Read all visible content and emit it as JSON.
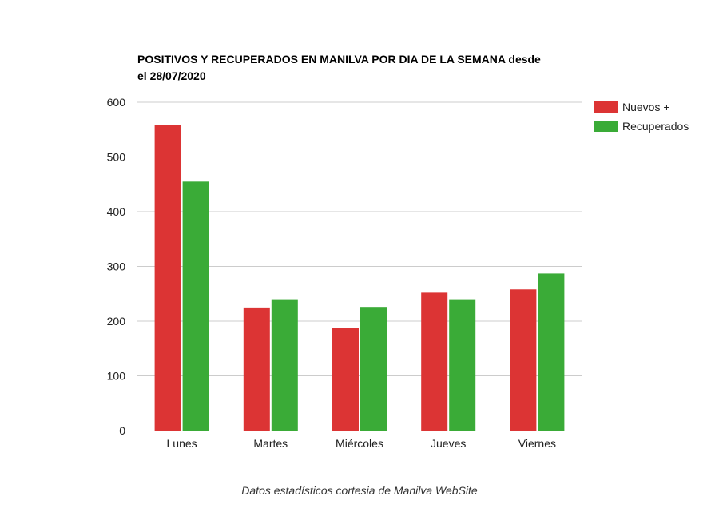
{
  "chart_data": {
    "type": "bar",
    "title_lines": [
      "POSITIVOS Y RECUPERADOS EN MANILVA POR DIA DE LA SEMANA desde",
      "el 28/07/2020"
    ],
    "categories": [
      "Lunes",
      "Martes",
      "Miércoles",
      "Jueves",
      "Viernes"
    ],
    "series": [
      {
        "name": "Nuevos +",
        "color": "#dc3434",
        "values": [
          558,
          225,
          188,
          252,
          258
        ]
      },
      {
        "name": "Recuperados",
        "color": "#3aab37",
        "values": [
          455,
          240,
          226,
          240,
          287
        ]
      }
    ],
    "y_ticks": [
      "0",
      "100",
      "200",
      "300",
      "400",
      "500",
      "600"
    ],
    "ylim": [
      0,
      600
    ],
    "grid": true,
    "legend_position": "right",
    "footer": "Datos estadísticos cortesia de Manilva WebSite"
  }
}
